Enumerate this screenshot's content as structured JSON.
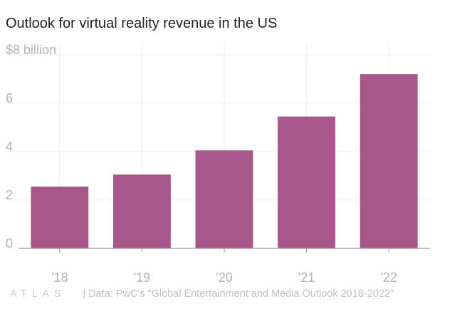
{
  "title": "Outlook for virtual reality revenue in the US",
  "footer": {
    "logo": "ATLAS",
    "source": "| Data: PwC's \"Global Entertainment and Media Outlook 2018-2022\""
  },
  "colors": {
    "bar": "#a8578a",
    "grid": "#ececec",
    "axis_text": "#b4b4b4",
    "baseline": "#9a9a9a"
  },
  "chart_data": {
    "type": "bar",
    "categories": [
      "'18",
      "'19",
      "'20",
      "'21",
      "'22"
    ],
    "values": [
      2.55,
      3.05,
      4.05,
      5.45,
      7.2
    ],
    "ylim": [
      0,
      8
    ],
    "yticks": [
      {
        "value": 0,
        "label": "0"
      },
      {
        "value": 2,
        "label": "2"
      },
      {
        "value": 4,
        "label": "4"
      },
      {
        "value": 6,
        "label": "6"
      },
      {
        "value": 8,
        "label": "$8 billion"
      }
    ],
    "grid": true,
    "xlabel": "",
    "ylabel": ""
  }
}
